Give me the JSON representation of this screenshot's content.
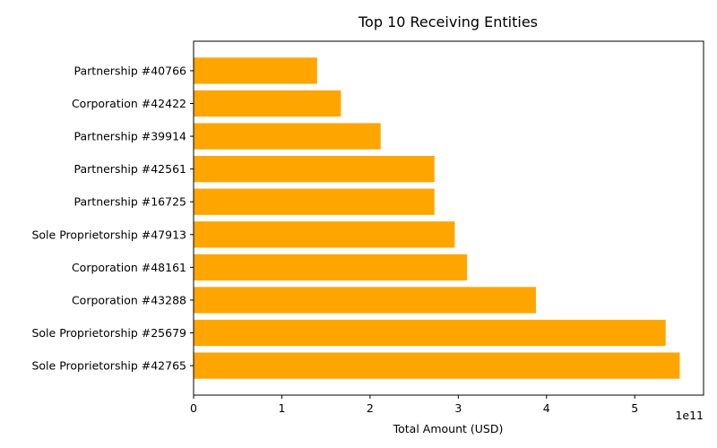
{
  "chart_data": {
    "type": "bar",
    "orientation": "horizontal",
    "title": "Top 10 Receiving Entities",
    "xlabel": "Total Amount (USD)",
    "ylabel": "",
    "x_scale_offset_label": "1e11",
    "xlim": [
      0,
      5.78
    ],
    "x_ticks": [
      0,
      1,
      2,
      3,
      4,
      5
    ],
    "x_tick_labels": [
      "0",
      "1",
      "2",
      "3",
      "4",
      "5"
    ],
    "value_multiplier": 100000000000,
    "categories": [
      "Partnership #40766",
      "Corporation #42422",
      "Partnership #39914",
      "Partnership #42561",
      "Partnership #16725",
      "Sole Proprietorship #47913",
      "Corporation #48161",
      "Corporation #43288",
      "Sole Proprietorship #25679",
      "Sole Proprietorship #42765"
    ],
    "values": [
      1.4,
      1.67,
      2.12,
      2.73,
      2.73,
      2.96,
      3.1,
      3.88,
      5.35,
      5.51
    ],
    "bar_color": "#FFA500",
    "grid": false,
    "legend": "none"
  }
}
